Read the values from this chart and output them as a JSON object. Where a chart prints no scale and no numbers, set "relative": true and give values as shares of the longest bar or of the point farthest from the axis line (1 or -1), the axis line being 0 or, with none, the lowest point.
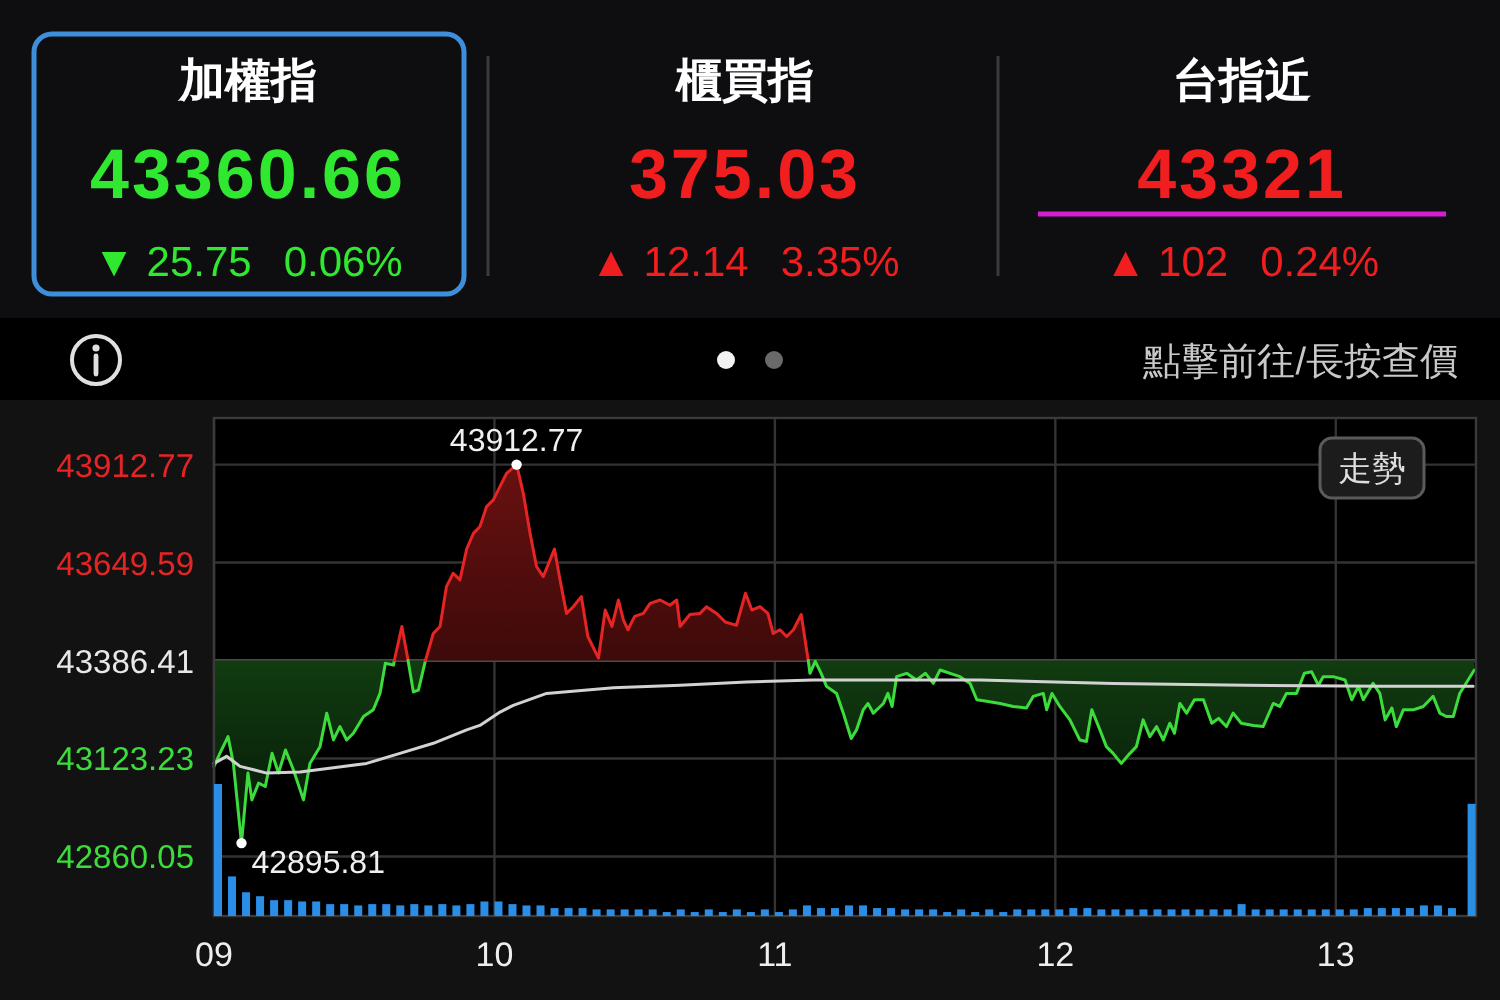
{
  "chart_data": [
    {
      "type": "other",
      "title": "加權指",
      "annotations": [
        "43360.66",
        "▼ 25.75",
        "0.06%"
      ],
      "color": "#30e830"
    },
    {
      "type": "other",
      "title": "櫃買指",
      "annotations": [
        "375.03",
        "▲ 12.14",
        "3.35%"
      ],
      "color": "#f01e1e"
    },
    {
      "type": "other",
      "title": "台指近",
      "annotations": [
        "43321",
        "▲ 102",
        "0.24%"
      ],
      "color": "#f01e1e"
    },
    {
      "type": "line",
      "subtitle": "點擊前往/長按查價",
      "xlim": [
        9,
        13.5
      ],
      "xticks": [
        9,
        10,
        11,
        12,
        13
      ],
      "ylim": [
        42700,
        44038
      ],
      "yticks": [
        42860.05,
        43123.23,
        43386.41,
        43649.59,
        43912.77
      ],
      "grid": true,
      "tick_labels": "y",
      "ref_lines": [
        {
          "axis": "y",
          "value": 43386.41,
          "color": "#4a4a4a"
        }
      ],
      "series": [
        {
          "type": "line",
          "color": "#3ddc3d",
          "x": [
            9.0,
            9.021,
            9.05,
            9.069,
            9.098,
            9.121,
            9.135,
            9.159,
            9.183,
            9.207,
            9.23,
            9.255,
            9.283,
            9.319,
            9.342,
            9.378,
            9.402,
            9.426,
            9.449,
            9.473,
            9.497,
            9.533,
            9.568,
            9.592,
            9.611,
            9.64,
            9.643
          ],
          "values": [
            43102,
            43137,
            43182,
            43110,
            42895.81,
            43084,
            43012,
            43057,
            43048,
            43137,
            43084,
            43146,
            43093,
            43012,
            43110,
            43155,
            43245,
            43173,
            43209,
            43173,
            43191,
            43236,
            43254,
            43298,
            43379,
            43374,
            43386.41
          ],
          "lower": [
            43102,
            43137,
            43182,
            43110,
            42895.81,
            43084,
            43012,
            43057,
            43048,
            43137,
            43084,
            43146,
            43093,
            43012,
            43110,
            43155,
            43245,
            43173,
            43209,
            43173,
            43191,
            43236,
            43254,
            43298,
            43379,
            43374,
            43386.41
          ],
          "upper": [
            43386.41,
            43386.41,
            43386.41,
            43386.41,
            43386.41,
            43386.41,
            43386.41,
            43386.41,
            43386.41,
            43386.41,
            43386.41,
            43386.41,
            43386.41,
            43386.41,
            43386.41,
            43386.41,
            43386.41,
            43386.41,
            43386.41,
            43386.41,
            43386.41,
            43386.41,
            43386.41,
            43386.41,
            43386.41,
            43386.41,
            43386.41
          ]
        },
        {
          "type": "line",
          "color": "#e62424",
          "x": [
            9.643,
            9.67,
            9.692
          ],
          "values": [
            43386.41,
            43478,
            43386.41
          ],
          "lower": [
            43386.41,
            43386.41,
            43386.41
          ],
          "upper": [
            43386.41,
            43478,
            43386.41
          ]
        },
        {
          "type": "line",
          "color": "#3ddc3d",
          "x": [
            9.692,
            9.711,
            9.729,
            9.754
          ],
          "values": [
            43386.41,
            43302,
            43307,
            43386.41
          ],
          "lower": [
            43386.41,
            43302,
            43307,
            43386.41
          ],
          "upper": [
            43386.41,
            43386.41,
            43386.41,
            43386.41
          ]
        },
        {
          "type": "line",
          "color": "#e62424",
          "x": [
            9.754,
            9.758,
            9.782,
            9.806,
            9.829,
            9.853,
            9.877,
            9.901,
            9.925,
            9.948,
            9.972,
            9.996,
            10.043,
            10.079,
            10.103,
            10.127,
            10.15,
            10.174,
            10.214,
            10.234,
            10.257,
            10.281,
            10.31,
            10.333,
            10.371,
            10.395,
            10.419,
            10.442,
            10.46,
            10.476,
            10.5,
            10.531,
            10.555,
            10.591,
            10.626,
            10.65,
            10.662,
            10.697,
            10.733,
            10.756,
            10.792,
            10.823,
            10.863,
            10.895,
            10.918,
            10.947,
            10.975,
            10.994,
            11.018,
            11.042,
            11.066,
            11.094,
            11.113,
            11.119
          ],
          "values": [
            43386.41,
            43397,
            43459,
            43478,
            43585,
            43621,
            43603,
            43686,
            43728,
            43746,
            43800,
            43818,
            43889,
            43912.77,
            43835,
            43728,
            43639,
            43612,
            43686,
            43603,
            43513,
            43531,
            43558,
            43451,
            43393,
            43522,
            43478,
            43549,
            43495,
            43469,
            43505,
            43513,
            43540,
            43549,
            43535,
            43549,
            43478,
            43510,
            43513,
            43531,
            43513,
            43490,
            43481,
            43567,
            43522,
            43531,
            43513,
            43459,
            43469,
            43451,
            43469,
            43510,
            43415,
            43386.41
          ],
          "lower": [
            43386.41,
            43386.41,
            43386.41,
            43386.41,
            43386.41,
            43386.41,
            43386.41,
            43386.41,
            43386.41,
            43386.41,
            43386.41,
            43386.41,
            43386.41,
            43386.41,
            43386.41,
            43386.41,
            43386.41,
            43386.41,
            43386.41,
            43386.41,
            43386.41,
            43386.41,
            43386.41,
            43386.41,
            43386.41,
            43386.41,
            43386.41,
            43386.41,
            43386.41,
            43386.41,
            43386.41,
            43386.41,
            43386.41,
            43386.41,
            43386.41,
            43386.41,
            43386.41,
            43386.41,
            43386.41,
            43386.41,
            43386.41,
            43386.41,
            43386.41,
            43386.41,
            43386.41,
            43386.41,
            43386.41,
            43386.41,
            43386.41,
            43386.41,
            43386.41,
            43386.41,
            43386.41,
            43386.41
          ],
          "upper": [
            43386.41,
            43397,
            43459,
            43478,
            43585,
            43621,
            43603,
            43686,
            43728,
            43746,
            43800,
            43818,
            43889,
            43912.77,
            43835,
            43728,
            43639,
            43612,
            43686,
            43603,
            43513,
            43531,
            43558,
            43451,
            43393,
            43522,
            43478,
            43549,
            43495,
            43469,
            43505,
            43513,
            43540,
            43549,
            43535,
            43549,
            43478,
            43510,
            43513,
            43531,
            43513,
            43490,
            43481,
            43567,
            43522,
            43531,
            43513,
            43459,
            43469,
            43451,
            43469,
            43510,
            43415,
            43386.41
          ]
        },
        {
          "type": "line",
          "color": "#3ddc3d",
          "x": [
            11.119,
            11.125,
            11.144,
            11.165,
            11.184,
            11.22,
            11.244,
            11.272,
            11.291,
            11.315,
            11.332,
            11.351,
            11.387,
            11.403,
            11.418,
            11.434,
            11.47,
            11.505,
            11.537,
            11.565,
            11.589,
            11.625,
            11.66,
            11.696,
            11.72,
            11.755,
            11.803,
            11.85,
            11.897,
            11.921,
            11.957,
            11.969,
            11.988,
            12.016,
            12.052,
            12.087,
            12.111,
            12.13,
            12.159,
            12.182,
            12.206,
            12.235,
            12.266,
            12.289,
            12.313,
            12.337,
            12.361,
            12.385,
            12.408,
            12.425,
            12.444,
            12.468,
            12.496,
            12.528,
            12.558,
            12.582,
            12.61,
            12.634,
            12.663,
            12.706,
            12.741,
            12.777,
            12.8,
            12.824,
            12.86,
            12.888,
            12.914,
            12.938,
            12.955,
            12.991,
            13.033,
            13.057,
            13.081,
            13.098,
            13.133,
            13.157,
            13.176,
            13.2,
            13.216,
            13.241,
            13.276,
            13.312,
            13.347,
            13.371,
            13.394,
            13.419,
            13.442,
            13.494
          ],
          "values": [
            43386.41,
            43352,
            43384,
            43352,
            43317,
            43298,
            43245,
            43177,
            43200,
            43254,
            43271,
            43245,
            43271,
            43298,
            43263,
            43343,
            43352,
            43334,
            43352,
            43325,
            43361,
            43352,
            43343,
            43325,
            43281,
            43277,
            43271,
            43263,
            43259,
            43290,
            43298,
            43254,
            43298,
            43263,
            43227,
            43173,
            43169,
            43254,
            43200,
            43155,
            43137,
            43110,
            43137,
            43155,
            43227,
            43182,
            43209,
            43173,
            43218,
            43191,
            43271,
            43245,
            43281,
            43281,
            43218,
            43231,
            43209,
            43245,
            43218,
            43212,
            43209,
            43271,
            43263,
            43298,
            43298,
            43352,
            43356,
            43320,
            43343,
            43343,
            43334,
            43281,
            43317,
            43281,
            43325,
            43298,
            43227,
            43259,
            43209,
            43254,
            43254,
            43263,
            43290,
            43245,
            43236,
            43236,
            43298,
            43361
          ],
          "lower": [
            43386.41,
            43352,
            43384,
            43352,
            43317,
            43298,
            43245,
            43177,
            43200,
            43254,
            43271,
            43245,
            43271,
            43298,
            43263,
            43343,
            43352,
            43334,
            43352,
            43325,
            43361,
            43352,
            43343,
            43325,
            43281,
            43277,
            43271,
            43263,
            43259,
            43290,
            43298,
            43254,
            43298,
            43263,
            43227,
            43173,
            43169,
            43254,
            43200,
            43155,
            43137,
            43110,
            43137,
            43155,
            43227,
            43182,
            43209,
            43173,
            43218,
            43191,
            43271,
            43245,
            43281,
            43281,
            43218,
            43231,
            43209,
            43245,
            43218,
            43212,
            43209,
            43271,
            43263,
            43298,
            43298,
            43352,
            43356,
            43320,
            43343,
            43343,
            43334,
            43281,
            43317,
            43281,
            43325,
            43298,
            43227,
            43259,
            43209,
            43254,
            43254,
            43263,
            43290,
            43245,
            43236,
            43236,
            43298,
            43361
          ],
          "upper": [
            43386.41,
            43386.41,
            43386.41,
            43386.41,
            43386.41,
            43386.41,
            43386.41,
            43386.41,
            43386.41,
            43386.41,
            43386.41,
            43386.41,
            43386.41,
            43386.41,
            43386.41,
            43386.41,
            43386.41,
            43386.41,
            43386.41,
            43386.41,
            43386.41,
            43386.41,
            43386.41,
            43386.41,
            43386.41,
            43386.41,
            43386.41,
            43386.41,
            43386.41,
            43386.41,
            43386.41,
            43386.41,
            43386.41,
            43386.41,
            43386.41,
            43386.41,
            43386.41,
            43386.41,
            43386.41,
            43386.41,
            43386.41,
            43386.41,
            43386.41,
            43386.41,
            43386.41,
            43386.41,
            43386.41,
            43386.41,
            43386.41,
            43386.41,
            43386.41,
            43386.41,
            43386.41,
            43386.41,
            43386.41,
            43386.41,
            43386.41,
            43386.41,
            43386.41,
            43386.41,
            43386.41,
            43386.41,
            43386.41,
            43386.41,
            43386.41,
            43386.41,
            43386.41,
            43386.41,
            43386.41,
            43386.41,
            43386.41,
            43386.41,
            43386.41,
            43386.41,
            43386.41,
            43386.41,
            43386.41,
            43386.41,
            43386.41,
            43386.41,
            43386.41,
            43386.41,
            43386.41,
            43386.41,
            43386.41,
            43386.41,
            43386.41,
            43386.41
          ]
        },
        {
          "type": "line",
          "color": "#d2d2d2",
          "x": [
            9.0,
            9.045,
            9.093,
            9.188,
            9.307,
            9.426,
            9.544,
            9.663,
            9.782,
            9.901,
            9.948,
            10.02,
            10.067,
            10.186,
            10.424,
            10.662,
            10.899,
            11.137,
            11.374,
            11.731,
            12.206,
            12.681,
            13.158,
            13.49
          ],
          "values": [
            43110,
            43129,
            43102,
            43084,
            43087,
            43098,
            43110,
            43137,
            43164,
            43200,
            43212,
            43248,
            43266,
            43298,
            43313,
            43320,
            43329,
            43334,
            43334,
            43334,
            43325,
            43320,
            43317,
            43317
          ]
        }
      ],
      "annotations": [
        {
          "text": "43912.77",
          "x": 10.079,
          "y": 43912.77
        },
        {
          "text": "42895.81",
          "x": 9.098,
          "y": 42895.81
        },
        "走勢"
      ]
    },
    {
      "type": "bar",
      "relative": true,
      "color": "#2a8de6",
      "tick_labels": "x",
      "xlim": [
        9,
        13.5
      ],
      "xticks": [
        {
          "value": 9,
          "label": "09"
        },
        10,
        11,
        12,
        13
      ],
      "x": [
        9,
        9.05,
        9.1,
        9.15,
        9.2,
        9.25,
        9.3,
        9.35,
        9.4,
        9.45,
        9.5,
        9.55,
        9.6,
        9.65,
        9.7,
        9.75,
        9.8,
        9.85,
        9.9,
        9.95,
        10,
        10.05,
        10.1,
        10.15,
        10.2,
        10.25,
        10.3,
        10.35,
        10.4,
        10.45,
        10.5,
        10.55,
        10.6,
        10.65,
        10.7,
        10.75,
        10.8,
        10.85,
        10.9,
        10.95,
        11,
        11.05,
        11.1,
        11.15,
        11.2,
        11.25,
        11.3,
        11.35,
        11.4,
        11.45,
        11.5,
        11.55,
        11.6,
        11.65,
        11.7,
        11.75,
        11.8,
        11.85,
        11.9,
        11.95,
        12,
        12.05,
        12.1,
        12.15,
        12.2,
        12.25,
        12.3,
        12.35,
        12.4,
        12.45,
        12.5,
        12.55,
        12.6,
        12.65,
        12.7,
        12.75,
        12.8,
        12.85,
        12.9,
        12.95,
        13,
        13.05,
        13.1,
        13.15,
        13.2,
        13.25,
        13.3,
        13.35,
        13.4,
        13.47
      ],
      "values": [
        1,
        0.3,
        0.18,
        0.15,
        0.12,
        0.12,
        0.11,
        0.11,
        0.09,
        0.09,
        0.08,
        0.09,
        0.09,
        0.08,
        0.09,
        0.08,
        0.09,
        0.08,
        0.09,
        0.11,
        0.11,
        0.09,
        0.08,
        0.08,
        0.06,
        0.06,
        0.06,
        0.05,
        0.05,
        0.05,
        0.05,
        0.05,
        0.03,
        0.05,
        0.03,
        0.05,
        0.03,
        0.05,
        0.03,
        0.05,
        0.03,
        0.05,
        0.08,
        0.06,
        0.06,
        0.08,
        0.08,
        0.06,
        0.06,
        0.05,
        0.05,
        0.05,
        0.03,
        0.05,
        0.03,
        0.05,
        0.03,
        0.05,
        0.05,
        0.05,
        0.05,
        0.06,
        0.06,
        0.05,
        0.05,
        0.05,
        0.05,
        0.05,
        0.05,
        0.05,
        0.05,
        0.05,
        0.05,
        0.09,
        0.05,
        0.05,
        0.05,
        0.05,
        0.05,
        0.05,
        0.05,
        0.05,
        0.06,
        0.06,
        0.06,
        0.06,
        0.08,
        0.08,
        0.06,
        0.85
      ]
    }
  ]
}
